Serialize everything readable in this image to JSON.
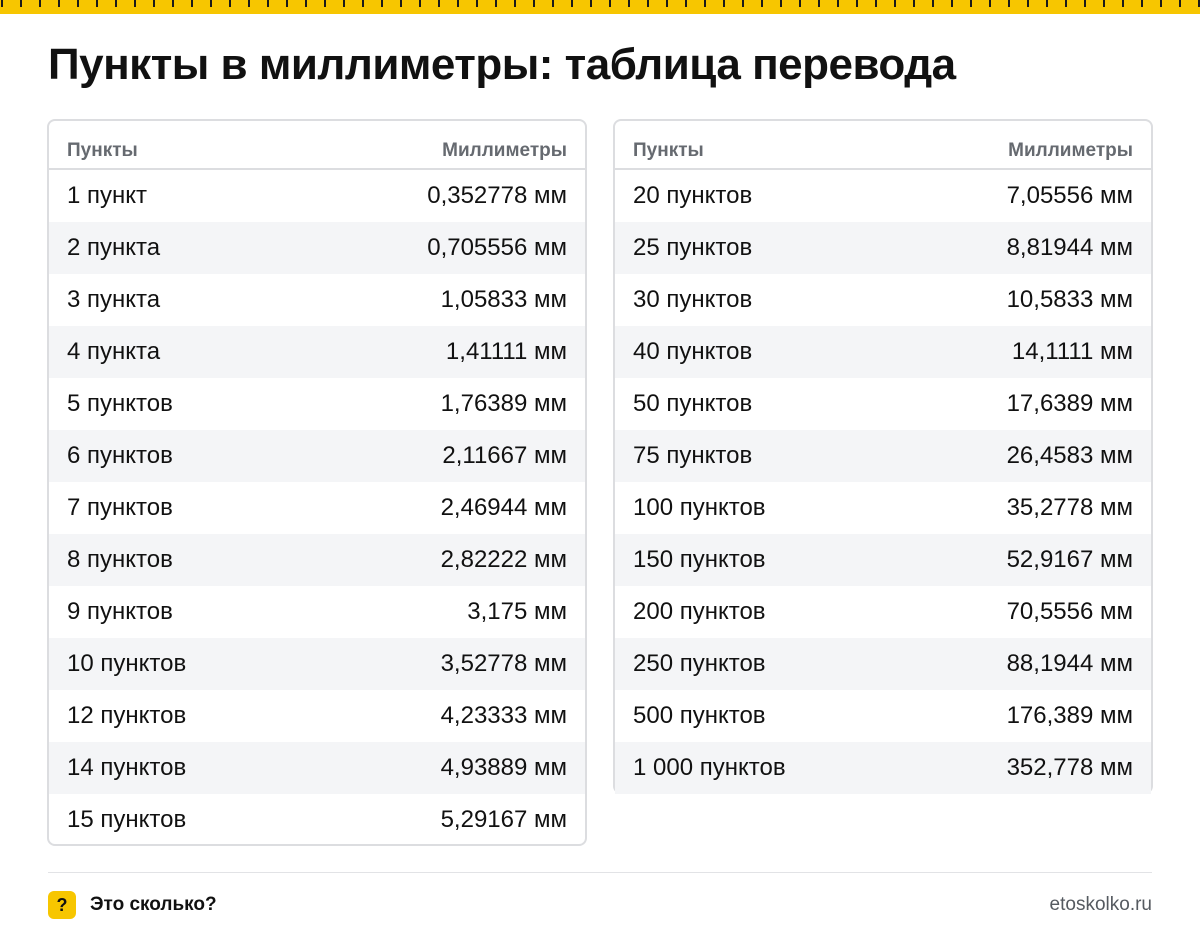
{
  "title": "Пункты в миллиметры: таблица перевода",
  "columns": {
    "points": "Пункты",
    "millimeters": "Миллиметры"
  },
  "left_table": [
    {
      "points": "1 пункт",
      "mm": "0,352778 мм"
    },
    {
      "points": "2 пункта",
      "mm": "0,705556 мм"
    },
    {
      "points": "3 пункта",
      "mm": "1,05833 мм"
    },
    {
      "points": "4 пункта",
      "mm": "1,41111 мм"
    },
    {
      "points": "5 пунктов",
      "mm": "1,76389 мм"
    },
    {
      "points": "6 пунктов",
      "mm": "2,11667 мм"
    },
    {
      "points": "7 пунктов",
      "mm": "2,46944 мм"
    },
    {
      "points": "8 пунктов",
      "mm": "2,82222 мм"
    },
    {
      "points": "9 пунктов",
      "mm": "3,175 мм"
    },
    {
      "points": "10 пунктов",
      "mm": "3,52778 мм"
    },
    {
      "points": "12 пунктов",
      "mm": "4,23333 мм"
    },
    {
      "points": "14 пунктов",
      "mm": "4,93889 мм"
    },
    {
      "points": "15 пунктов",
      "mm": "5,29167 мм"
    }
  ],
  "right_table": [
    {
      "points": "20 пунктов",
      "mm": "7,05556 мм"
    },
    {
      "points": "25 пунктов",
      "mm": "8,81944 мм"
    },
    {
      "points": "30 пунктов",
      "mm": "10,5833 мм"
    },
    {
      "points": "40 пунктов",
      "mm": "14,1111 мм"
    },
    {
      "points": "50 пунктов",
      "mm": "17,6389 мм"
    },
    {
      "points": "75 пунктов",
      "mm": "26,4583 мм"
    },
    {
      "points": "100 пунктов",
      "mm": "35,2778 мм"
    },
    {
      "points": "150 пунктов",
      "mm": "52,9167 мм"
    },
    {
      "points": "200 пунктов",
      "mm": "70,5556 мм"
    },
    {
      "points": "250 пунктов",
      "mm": "88,1944 мм"
    },
    {
      "points": "500 пунктов",
      "mm": "176,389 мм"
    },
    {
      "points": "1 000 пунктов",
      "mm": "352,778 мм"
    }
  ],
  "footer": {
    "brand_icon": "?",
    "brand_name": "Это сколько?",
    "site": "etoskolko.ru"
  },
  "colors": {
    "accent": "#f7c600",
    "row_alt": "#f4f5f7",
    "border": "#dcdde0",
    "header_text": "#666a70"
  },
  "icons": {
    "ruler": "ruler-strip-decoration",
    "brand": "question-mark-icon"
  }
}
